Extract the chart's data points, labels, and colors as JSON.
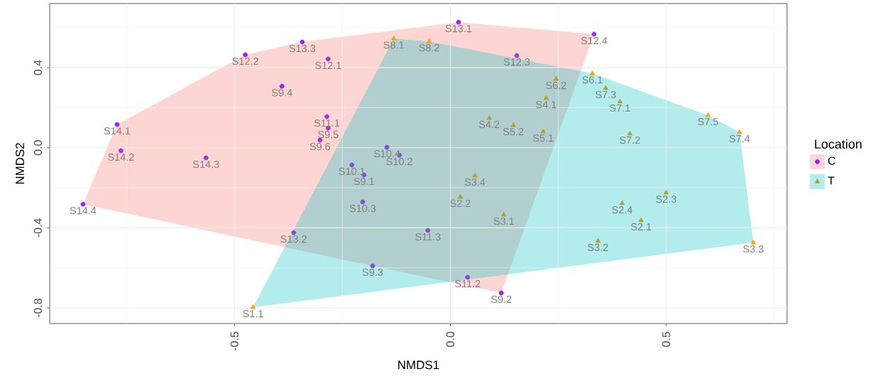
{
  "chart_data": {
    "type": "scatter",
    "xlabel": "NMDS1",
    "ylabel": "NMDS2",
    "legend_title": "Location",
    "legend": "right",
    "grid": true,
    "xlim": [
      -0.928,
      0.78
    ],
    "ylim": [
      -0.878,
      0.72
    ],
    "xticks": [
      -0.5,
      {
        "value": 0,
        "label": "0.0"
      },
      0.5
    ],
    "yticks": [
      -0.8,
      -0.4,
      {
        "value": 0,
        "label": "0.0"
      },
      0.4
    ],
    "series": [
      {
        "name": "C",
        "color": "#f8766d",
        "marker": "circle",
        "x": [
          0.019,
          0.333,
          -0.475,
          -0.343,
          -0.283,
          0.154,
          -0.39,
          -0.772,
          -0.763,
          -0.566,
          -0.851,
          -0.286,
          -0.283,
          -0.302,
          -0.147,
          -0.118,
          -0.228,
          -0.2,
          -0.203,
          -0.052,
          -0.18,
          0.04,
          0.118,
          -0.363
        ],
        "values": [
          0.627,
          0.567,
          0.464,
          0.528,
          0.443,
          0.46,
          0.307,
          0.116,
          -0.015,
          -0.051,
          -0.282,
          0.155,
          0.098,
          0.038,
          0.002,
          -0.037,
          -0.086,
          -0.136,
          -0.271,
          -0.413,
          -0.59,
          -0.647,
          -0.725,
          -0.424
        ],
        "colors": [
          "#a020f0",
          "#a030e0",
          "#a020f0",
          "#a020f0",
          "#a030e0",
          "#a838d8",
          "#a020f0",
          "#a020f0",
          "#a830d8",
          "#a830d8",
          "#a020f0",
          "#a830d8",
          "#a830d8",
          "#a830d8",
          "#8050d8",
          "#8050d8",
          "#8050d8",
          "#8050d8",
          "#8050d8",
          "#8050d8",
          "#8050d8",
          "#8050d8",
          "#a020f0",
          "#8050d8"
        ]
      },
      {
        "name": "T",
        "color": "#00bfc4",
        "marker": "triangle",
        "x": [
          0.245,
          -0.131,
          -0.049,
          0.329,
          0.36,
          0.393,
          0.222,
          0.597,
          0.67,
          0.416,
          0.09,
          0.146,
          0.215,
          0.057,
          0.023,
          0.124,
          0.5,
          0.398,
          0.442,
          0.342,
          0.702,
          -0.457
        ],
        "values": [
          0.343,
          0.545,
          0.531,
          0.371,
          0.297,
          0.23,
          0.247,
          0.162,
          0.077,
          0.07,
          0.148,
          0.112,
          0.08,
          -0.14,
          -0.246,
          -0.335,
          -0.225,
          -0.278,
          -0.363,
          -0.466,
          -0.474,
          -0.797
        ],
        "colors": [
          "#b5a030",
          "#ffa500",
          "#ffa500",
          "#ffa500",
          "#b5a030",
          "#b5a030",
          "#b5a030",
          "#ffa500",
          "#ffa500",
          "#b5a030",
          "#b5a030",
          "#b5a030",
          "#b5a030",
          "#b5a030",
          "#b5a030",
          "#b5a030",
          "#b5a030",
          "#b5a030",
          "#b5a030",
          "#b5a030",
          "#ffa500",
          "#ffa500"
        ]
      }
    ],
    "annotations": [
      {
        "text": "S13.1",
        "x": 0.019,
        "y": 0.627
      },
      {
        "text": "S12.4",
        "x": 0.333,
        "y": 0.567
      },
      {
        "text": "S12.2",
        "x": -0.475,
        "y": 0.464
      },
      {
        "text": "S13.3",
        "x": -0.343,
        "y": 0.528
      },
      {
        "text": "S12.1",
        "x": -0.283,
        "y": 0.443
      },
      {
        "text": "S12.3",
        "x": 0.154,
        "y": 0.46
      },
      {
        "text": "S9.4",
        "x": -0.39,
        "y": 0.307
      },
      {
        "text": "S14.1",
        "x": -0.772,
        "y": 0.116
      },
      {
        "text": "S14.2",
        "x": -0.763,
        "y": -0.015
      },
      {
        "text": "S14.3",
        "x": -0.566,
        "y": -0.051
      },
      {
        "text": "S14.4",
        "x": -0.851,
        "y": -0.282
      },
      {
        "text": "S11.1",
        "x": -0.286,
        "y": 0.155
      },
      {
        "text": "S9.5",
        "x": -0.283,
        "y": 0.098
      },
      {
        "text": "S9.6",
        "x": -0.302,
        "y": 0.038
      },
      {
        "text": "S10.4",
        "x": -0.147,
        "y": 0.002
      },
      {
        "text": "S10.2",
        "x": -0.118,
        "y": -0.037
      },
      {
        "text": "S10.1",
        "x": -0.228,
        "y": -0.086
      },
      {
        "text": "S9.1",
        "x": -0.2,
        "y": -0.136
      },
      {
        "text": "S10.3",
        "x": -0.203,
        "y": -0.271
      },
      {
        "text": "S11.3",
        "x": -0.052,
        "y": -0.413
      },
      {
        "text": "S9.3",
        "x": -0.18,
        "y": -0.59
      },
      {
        "text": "S11.2",
        "x": 0.04,
        "y": -0.647
      },
      {
        "text": "S9.2",
        "x": 0.118,
        "y": -0.725
      },
      {
        "text": "S13.2",
        "x": -0.363,
        "y": -0.424
      },
      {
        "text": "S6.2",
        "x": 0.245,
        "y": 0.343
      },
      {
        "text": "S8.1",
        "x": -0.131,
        "y": 0.545
      },
      {
        "text": "S8.2",
        "x": -0.049,
        "y": 0.531
      },
      {
        "text": "S6.1",
        "x": 0.329,
        "y": 0.371
      },
      {
        "text": "S7.3",
        "x": 0.36,
        "y": 0.297
      },
      {
        "text": "S7.1",
        "x": 0.393,
        "y": 0.23
      },
      {
        "text": "S4.1",
        "x": 0.222,
        "y": 0.247
      },
      {
        "text": "S7.5",
        "x": 0.597,
        "y": 0.162
      },
      {
        "text": "S7.4",
        "x": 0.67,
        "y": 0.077
      },
      {
        "text": "S7.2",
        "x": 0.416,
        "y": 0.07
      },
      {
        "text": "S4.2",
        "x": 0.09,
        "y": 0.148
      },
      {
        "text": "S5.2",
        "x": 0.146,
        "y": 0.112
      },
      {
        "text": "S5.1",
        "x": 0.215,
        "y": 0.08
      },
      {
        "text": "S3.4",
        "x": 0.057,
        "y": -0.14
      },
      {
        "text": "S2.2",
        "x": 0.023,
        "y": -0.246
      },
      {
        "text": "S3.1",
        "x": 0.124,
        "y": -0.335
      },
      {
        "text": "S2.3",
        "x": 0.5,
        "y": -0.225
      },
      {
        "text": "S2.4",
        "x": 0.398,
        "y": -0.278
      },
      {
        "text": "S2.1",
        "x": 0.442,
        "y": -0.363
      },
      {
        "text": "S3.2",
        "x": 0.342,
        "y": -0.466
      },
      {
        "text": "S3.3",
        "x": 0.702,
        "y": -0.474
      },
      {
        "text": "S1.1",
        "x": -0.457,
        "y": -0.797
      }
    ]
  }
}
